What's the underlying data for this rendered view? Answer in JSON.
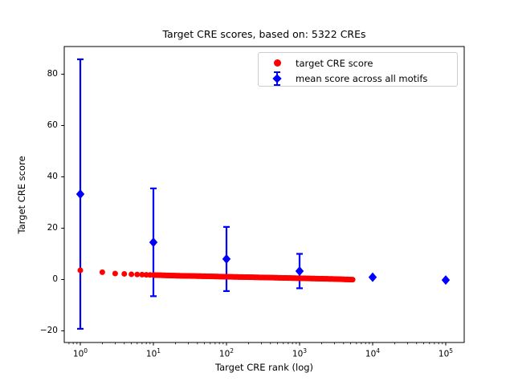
{
  "chart_data": {
    "type": "scatter",
    "title": "Target CRE scores, based on: 5322 CREs",
    "xlabel": "Target CRE rank (log)",
    "ylabel": "Target CRE score",
    "xscale": "log",
    "xlim": [
      0.6,
      178000
    ],
    "ylim": [
      -24.5,
      91
    ],
    "grid": false,
    "x_tick_exponents": [
      0,
      1,
      2,
      3,
      4,
      5
    ],
    "x_tick_base": "10",
    "y_tick_values": [
      -20,
      0,
      20,
      40,
      60,
      80
    ],
    "y_tick_labels": [
      "−20",
      "0",
      "20",
      "40",
      "60",
      "80"
    ],
    "legend_position": "upper right",
    "n_cres": 5322,
    "series": [
      {
        "name": "target CRE score",
        "marker": "circle",
        "color": "#ff0000",
        "rank_range": [
          1,
          5322
        ],
        "profile_points": [
          [
            1,
            3.6
          ],
          [
            2,
            2.85
          ],
          [
            3,
            2.35
          ],
          [
            4,
            2.2
          ],
          [
            5,
            2.05
          ],
          [
            7,
            1.9
          ],
          [
            10,
            1.75
          ],
          [
            20,
            1.5
          ],
          [
            50,
            1.28
          ],
          [
            100,
            1.08
          ],
          [
            300,
            0.82
          ],
          [
            1000,
            0.5
          ],
          [
            3000,
            0.2
          ],
          [
            5322,
            -0.05
          ]
        ]
      },
      {
        "name": "mean score across all motifs",
        "marker": "diamond",
        "color": "#0000ff",
        "points": [
          {
            "x": 1,
            "y": 33.3,
            "yerr": 52.5
          },
          {
            "x": 10,
            "y": 14.5,
            "yerr": 21.0
          },
          {
            "x": 100,
            "y": 8.0,
            "yerr": 12.5
          },
          {
            "x": 1000,
            "y": 3.3,
            "yerr": 6.7
          },
          {
            "x": 10000,
            "y": 0.9,
            "yerr": 0
          },
          {
            "x": 100000,
            "y": -0.2,
            "yerr": 0
          }
        ]
      }
    ],
    "spine_color": "#000000",
    "background_color": "#ffffff",
    "legend_border_color": "#cccccc"
  }
}
